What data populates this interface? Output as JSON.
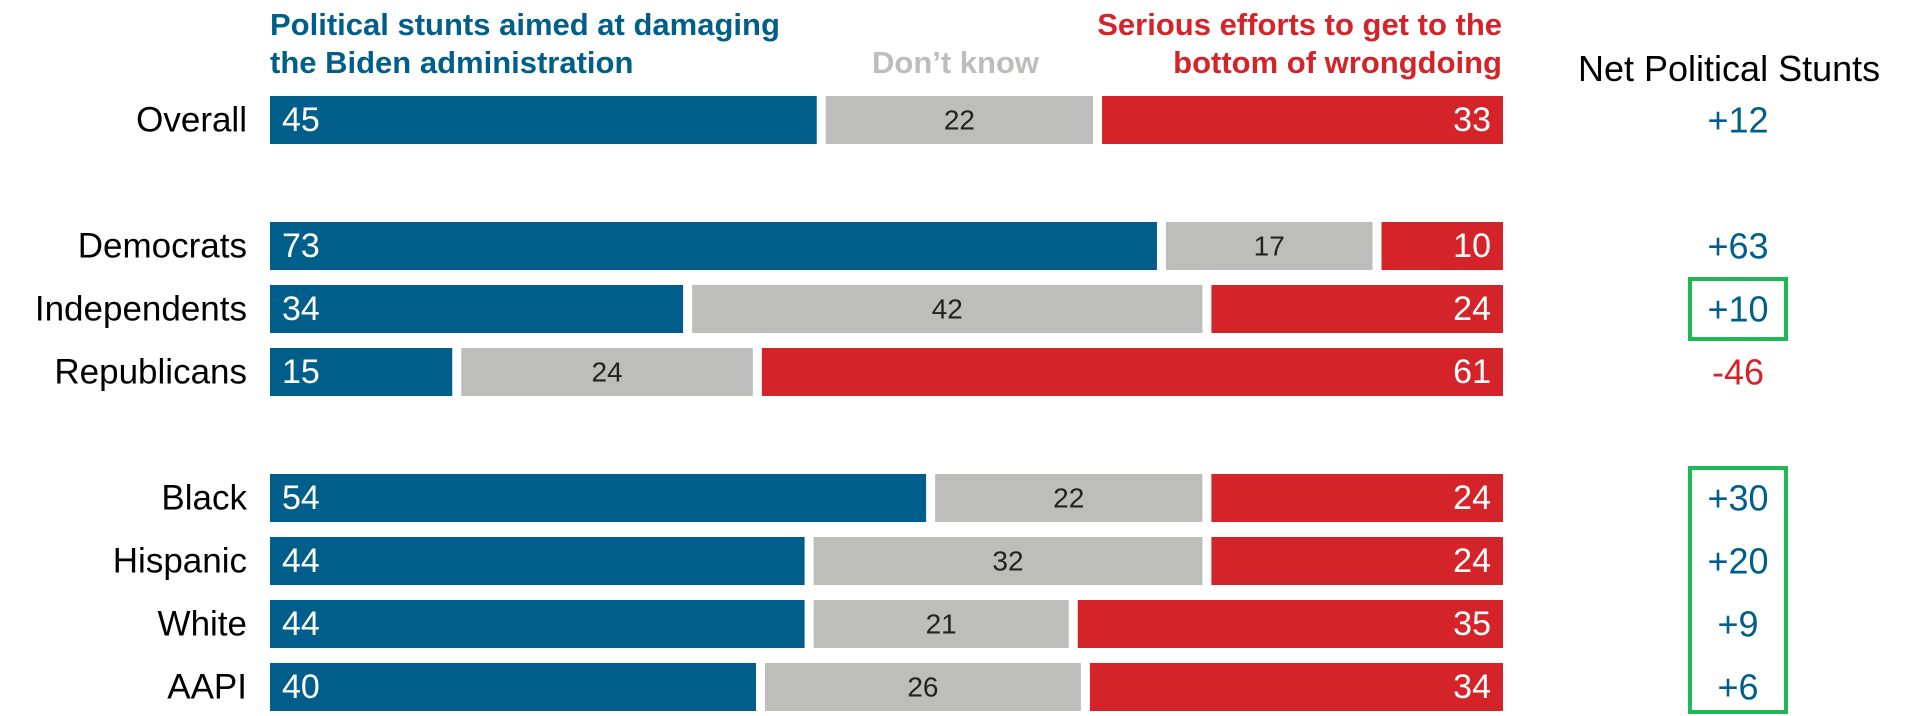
{
  "chart_data": {
    "type": "bar",
    "stacked": true,
    "orientation": "horizontal",
    "categories": [
      "Overall",
      "Democrats",
      "Independents",
      "Republicans",
      "Black",
      "Hispanic",
      "White",
      "AAPI"
    ],
    "series": [
      {
        "name": "Political stunts aimed at damaging the Biden administration",
        "color": "#005f8a",
        "values": [
          45,
          73,
          34,
          15,
          54,
          44,
          44,
          40
        ]
      },
      {
        "name": "Don’t know",
        "color": "#bdbdbc",
        "values": [
          22,
          17,
          42,
          24,
          22,
          32,
          21,
          26
        ]
      },
      {
        "name": "Serious efforts to get to the bottom of wrongdoing",
        "color": "#d5232a",
        "values": [
          33,
          10,
          24,
          61,
          24,
          24,
          35,
          34
        ]
      }
    ],
    "net_header": "Net Political Stunts",
    "net_values": [
      "+12",
      "+63",
      "+10",
      "-46",
      "+30",
      "+20",
      "+9",
      "+6"
    ],
    "net_colors": [
      "#005f8a",
      "#005f8a",
      "#005f8a",
      "#d5232a",
      "#005f8a",
      "#005f8a",
      "#005f8a",
      "#005f8a"
    ],
    "highlight_color": "#1db954",
    "highlighted": [
      [
        "Independents"
      ],
      [
        "Black",
        "Hispanic",
        "White",
        "AAPI"
      ]
    ],
    "xlim": [
      0,
      100
    ]
  }
}
